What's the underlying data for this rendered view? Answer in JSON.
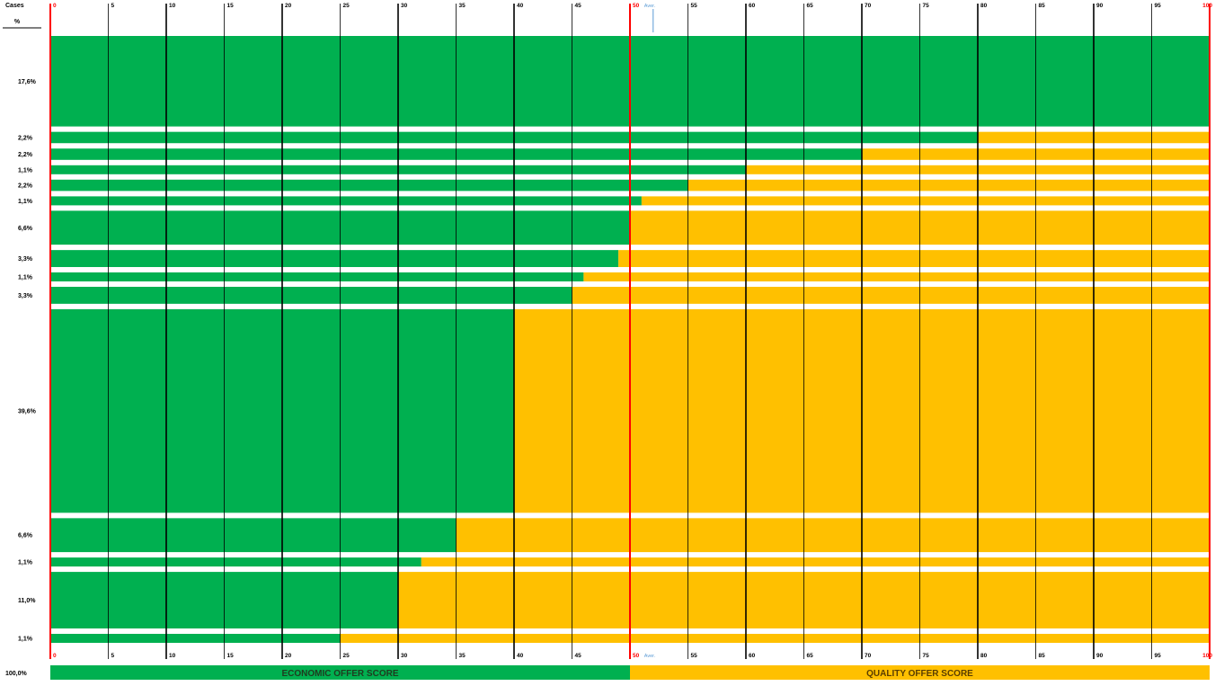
{
  "header": {
    "cases_label": "Cases",
    "percent_label": "%"
  },
  "total": "100,0%",
  "colors": {
    "economic": "#00B050",
    "quality": "#FFC000",
    "gridline": "#000000",
    "boundary": "#FF0000",
    "avg_marker": "#5B9BD5",
    "tick_text": "#000000",
    "boundary_text": "#FF0000"
  },
  "chart_data": {
    "type": "bar",
    "orientation": "horizontal",
    "stacked": true,
    "xlim": [
      0,
      100
    ],
    "x_ticks": [
      0,
      5,
      10,
      15,
      20,
      25,
      30,
      35,
      40,
      45,
      50,
      55,
      60,
      65,
      70,
      75,
      80,
      85,
      90,
      95,
      100
    ],
    "grid": true,
    "avg_label": "Aver.",
    "avg_value": 52,
    "rows": [
      {
        "label": "17,6%",
        "economic": 100
      },
      {
        "label": "2,2%",
        "economic": 80
      },
      {
        "label": "2,2%",
        "economic": 70
      },
      {
        "label": "1,1%",
        "economic": 60
      },
      {
        "label": "2,2%",
        "economic": 55
      },
      {
        "label": "1,1%",
        "economic": 51
      },
      {
        "label": "6,6%",
        "economic": 50
      },
      {
        "label": "3,3%",
        "economic": 49
      },
      {
        "label": "1,1%",
        "economic": 46
      },
      {
        "label": "3,3%",
        "economic": 45
      },
      {
        "label": "39,6%",
        "economic": 40
      },
      {
        "label": "6,6%",
        "economic": 35
      },
      {
        "label": "1,1%",
        "economic": 32
      },
      {
        "label": "11,0%",
        "economic": 30
      },
      {
        "label": "1,1%",
        "economic": 25
      }
    ],
    "series": [
      {
        "name": "ECONOMIC OFFER SCORE",
        "color": "#00B050"
      },
      {
        "name": "QUALITY OFFER SCORE",
        "color": "#FFC000"
      }
    ],
    "legend_position": "bottom"
  }
}
